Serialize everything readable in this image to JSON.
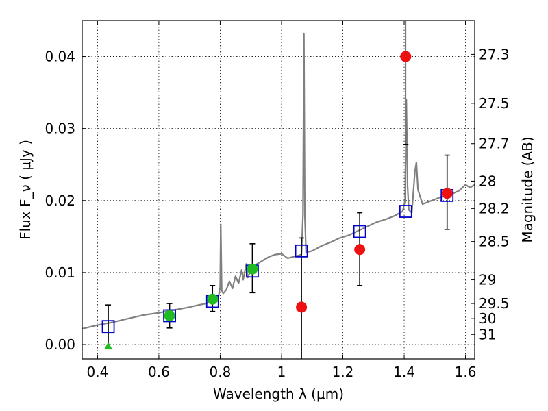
{
  "chart_data": {
    "type": "scatter",
    "xlabel": "Wavelength  λ (μm)",
    "ylabel": "Flux  F_ν  ( μJy )",
    "ylabel_right": "Magnitude (AB)",
    "xlim": [
      0.35,
      1.63
    ],
    "ylim": [
      -0.002,
      0.045
    ],
    "grid": true,
    "x_ticks": [
      0.4,
      0.6,
      0.8,
      1.0,
      1.2,
      1.4,
      1.6
    ],
    "x_tick_labels": [
      "0.4",
      "0.6",
      "0.8",
      "1",
      "1.2",
      "1.4",
      "1.6"
    ],
    "y_ticks": [
      0.0,
      0.01,
      0.02,
      0.03,
      0.04
    ],
    "y_tick_labels": [
      "0.00",
      "0.01",
      "0.02",
      "0.03",
      "0.04"
    ],
    "right_ticks": [
      {
        "label": "27.3",
        "flux": 0.0403
      },
      {
        "label": "27.5",
        "flux": 0.0335
      },
      {
        "label": "27.7",
        "flux": 0.0279
      },
      {
        "label": "28",
        "flux": 0.0227
      },
      {
        "label": "28.2",
        "flux": 0.0189
      },
      {
        "label": "28.5",
        "flux": 0.0143
      },
      {
        "label": "29",
        "flux": 0.009
      },
      {
        "label": "29.5",
        "flux": 0.0057
      },
      {
        "label": "30",
        "flux": 0.0036
      },
      {
        "label": "31",
        "flux": 0.0014
      }
    ],
    "series": [
      {
        "kind": "spectrum",
        "color": "#808080",
        "points": [
          [
            0.35,
            0.0022
          ],
          [
            0.4,
            0.0027
          ],
          [
            0.45,
            0.0031
          ],
          [
            0.5,
            0.0036
          ],
          [
            0.55,
            0.0041
          ],
          [
            0.6,
            0.0044
          ],
          [
            0.65,
            0.0048
          ],
          [
            0.7,
            0.0052
          ],
          [
            0.73,
            0.0055
          ],
          [
            0.755,
            0.0057
          ],
          [
            0.77,
            0.0061
          ],
          [
            0.785,
            0.0065
          ],
          [
            0.795,
            0.0068
          ],
          [
            0.8,
            0.008
          ],
          [
            0.802,
            0.0167
          ],
          [
            0.805,
            0.0075
          ],
          [
            0.81,
            0.0071
          ],
          [
            0.82,
            0.0076
          ],
          [
            0.83,
            0.0088
          ],
          [
            0.84,
            0.0078
          ],
          [
            0.85,
            0.0095
          ],
          [
            0.86,
            0.0085
          ],
          [
            0.87,
            0.0104
          ],
          [
            0.875,
            0.009
          ],
          [
            0.885,
            0.0112
          ],
          [
            0.89,
            0.0093
          ],
          [
            0.9,
            0.0103
          ],
          [
            0.92,
            0.0112
          ],
          [
            0.94,
            0.0117
          ],
          [
            0.96,
            0.0122
          ],
          [
            0.98,
            0.0125
          ],
          [
            1.0,
            0.0126
          ],
          [
            1.02,
            0.012
          ],
          [
            1.05,
            0.0123
          ],
          [
            1.065,
            0.0125
          ],
          [
            1.07,
            0.018
          ],
          [
            1.073,
            0.0432
          ],
          [
            1.076,
            0.018
          ],
          [
            1.08,
            0.0128
          ],
          [
            1.1,
            0.013
          ],
          [
            1.13,
            0.0137
          ],
          [
            1.16,
            0.0142
          ],
          [
            1.19,
            0.0148
          ],
          [
            1.22,
            0.0152
          ],
          [
            1.25,
            0.0158
          ],
          [
            1.28,
            0.0164
          ],
          [
            1.31,
            0.017
          ],
          [
            1.34,
            0.0174
          ],
          [
            1.37,
            0.0179
          ],
          [
            1.395,
            0.0185
          ],
          [
            1.403,
            0.02
          ],
          [
            1.407,
            0.034
          ],
          [
            1.411,
            0.022
          ],
          [
            1.415,
            0.0187
          ],
          [
            1.425,
            0.0183
          ],
          [
            1.435,
            0.024
          ],
          [
            1.44,
            0.0253
          ],
          [
            1.445,
            0.0215
          ],
          [
            1.46,
            0.0195
          ],
          [
            1.49,
            0.02
          ],
          [
            1.52,
            0.0205
          ],
          [
            1.55,
            0.0208
          ],
          [
            1.58,
            0.0214
          ],
          [
            1.6,
            0.0222
          ],
          [
            1.615,
            0.0218
          ],
          [
            1.63,
            0.0222
          ]
        ]
      },
      {
        "kind": "model_bands",
        "marker": "open-square",
        "color": "#0000cc",
        "points": [
          {
            "x": 0.435,
            "y": 0.0025
          },
          {
            "x": 0.635,
            "y": 0.004
          },
          {
            "x": 0.775,
            "y": 0.006
          },
          {
            "x": 0.905,
            "y": 0.0102
          },
          {
            "x": 1.065,
            "y": 0.013
          },
          {
            "x": 1.255,
            "y": 0.0157
          },
          {
            "x": 1.405,
            "y": 0.0185
          },
          {
            "x": 1.54,
            "y": 0.0207
          }
        ]
      },
      {
        "kind": "observed",
        "marker": "filled-circle",
        "color": "#22bb22",
        "points": [
          {
            "x": 0.635,
            "y": 0.004,
            "err_lo": 0.0023,
            "err_hi": 0.0057
          },
          {
            "x": 0.775,
            "y": 0.0063,
            "err_lo": 0.0046,
            "err_hi": 0.0082
          },
          {
            "x": 0.905,
            "y": 0.0105,
            "err_lo": 0.0072,
            "err_hi": 0.014
          }
        ]
      },
      {
        "kind": "observed",
        "marker": "filled-triangle",
        "color": "#22bb22",
        "points": [
          {
            "x": 0.435,
            "y": -0.0002,
            "err_lo": -0.0002,
            "err_hi": 0.0055
          }
        ]
      },
      {
        "kind": "observed",
        "marker": "filled-circle",
        "color": "#ee1111",
        "points": [
          {
            "x": 1.065,
            "y": 0.0052,
            "err_lo": -0.003,
            "err_hi": 0.0148
          },
          {
            "x": 1.255,
            "y": 0.0132,
            "err_lo": 0.0082,
            "err_hi": 0.0183
          },
          {
            "x": 1.405,
            "y": 0.04,
            "err_lo": 0.0278,
            "err_hi": 0.046
          },
          {
            "x": 1.54,
            "y": 0.021,
            "err_lo": 0.016,
            "err_hi": 0.0263
          }
        ]
      }
    ]
  }
}
